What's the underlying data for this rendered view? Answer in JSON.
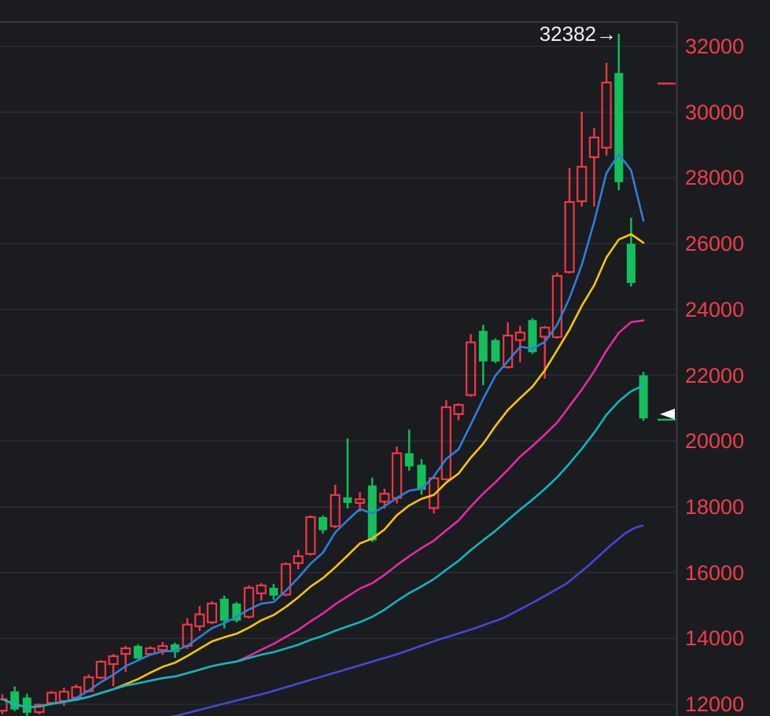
{
  "chart_data": {
    "type": "candlestick",
    "title": "",
    "xlabel": "",
    "ylabel": "",
    "legend_position": "none",
    "grid": true,
    "annotation": {
      "text": "32382→",
      "anchor_value": 32382,
      "color": "#eef0f2"
    },
    "y_axis": {
      "side": "right",
      "min": 12000,
      "max": 32000,
      "tick_step": 2000,
      "ticks": [
        32000,
        30000,
        28000,
        26000,
        24000,
        22000,
        20000,
        18000,
        16000,
        14000,
        12000
      ],
      "tick_labels": [
        "32000",
        "30000",
        "28000",
        "26000",
        "24000",
        "22000",
        "20000",
        "18000",
        "16000",
        "14000",
        "12000"
      ],
      "label_color": "#ef3e4a"
    },
    "candles": {
      "convention": "red-hollow-up, green-solid-down",
      "ohlc": [
        [
          11800,
          12300,
          11700,
          12150
        ],
        [
          12390,
          12540,
          11790,
          11840
        ],
        [
          12200,
          12320,
          11640,
          11740
        ],
        [
          11760,
          12020,
          11700,
          11980
        ],
        [
          12040,
          12400,
          11990,
          12350
        ],
        [
          12100,
          12500,
          11950,
          12380
        ],
        [
          12200,
          12600,
          12150,
          12520
        ],
        [
          12400,
          12900,
          12360,
          12820
        ],
        [
          12810,
          13340,
          12760,
          13290
        ],
        [
          13220,
          13530,
          12550,
          13460
        ],
        [
          13530,
          13770,
          12980,
          13700
        ],
        [
          13770,
          13820,
          13340,
          13390
        ],
        [
          13530,
          13760,
          13470,
          13700
        ],
        [
          13650,
          13890,
          13500,
          13770
        ],
        [
          13820,
          13870,
          13410,
          13580
        ],
        [
          13770,
          14620,
          13680,
          14420
        ],
        [
          14370,
          14980,
          14230,
          14730
        ],
        [
          14490,
          15130,
          14440,
          15060
        ],
        [
          15210,
          15300,
          14300,
          14540
        ],
        [
          15060,
          15110,
          14490,
          14540
        ],
        [
          14660,
          15610,
          14610,
          15540
        ],
        [
          15370,
          15680,
          15150,
          15610
        ],
        [
          15540,
          15660,
          15180,
          15300
        ],
        [
          15330,
          16310,
          15280,
          16260
        ],
        [
          16290,
          16690,
          16100,
          16500
        ],
        [
          16570,
          17740,
          16520,
          17690
        ],
        [
          17690,
          17740,
          17190,
          17290
        ],
        [
          17410,
          18670,
          17360,
          18360
        ],
        [
          18290,
          20080,
          17950,
          18120
        ],
        [
          18120,
          18450,
          17850,
          18230
        ],
        [
          18650,
          18890,
          16930,
          16980
        ],
        [
          18160,
          18550,
          17950,
          18400
        ],
        [
          18270,
          19830,
          18100,
          19630
        ],
        [
          19630,
          20350,
          19100,
          19230
        ],
        [
          19280,
          19450,
          18370,
          18520
        ],
        [
          17960,
          18920,
          17800,
          18870
        ],
        [
          18840,
          21240,
          18800,
          21030
        ],
        [
          20820,
          21150,
          20630,
          21100
        ],
        [
          21400,
          23250,
          21350,
          23000
        ],
        [
          23350,
          23540,
          21700,
          22420
        ],
        [
          23070,
          23120,
          22370,
          22420
        ],
        [
          22250,
          23610,
          22200,
          23210
        ],
        [
          23070,
          23500,
          22400,
          23300
        ],
        [
          23680,
          23730,
          22650,
          22700
        ],
        [
          23170,
          23500,
          21900,
          23450
        ],
        [
          23160,
          25120,
          23110,
          25020
        ],
        [
          25140,
          28300,
          25090,
          27270
        ],
        [
          27290,
          30010,
          27130,
          28340
        ],
        [
          28630,
          29520,
          27130,
          29230
        ],
        [
          28920,
          31500,
          28680,
          30900
        ],
        [
          31190,
          32382,
          27630,
          27870
        ],
        [
          26000,
          26790,
          24700,
          24810
        ],
        [
          22000,
          22100,
          20620,
          20690
        ]
      ]
    },
    "moving_averages": [
      {
        "name": "MA5",
        "color": "#2d7fd9",
        "window": 5
      },
      {
        "name": "MA10",
        "color": "#f8c50d",
        "window": 10
      },
      {
        "name": "MA20",
        "color": "#e32ba0",
        "window": 20
      },
      {
        "name": "MA30",
        "color": "#10b7ba",
        "window": 30
      },
      {
        "name": "MA60",
        "color": "#4547d8",
        "points": [
          [
            160,
            11400
          ],
          [
            225,
            11650
          ],
          [
            285,
            12020
          ],
          [
            340,
            12350
          ],
          [
            395,
            12740
          ],
          [
            450,
            13130
          ],
          [
            505,
            13520
          ],
          [
            555,
            13940
          ],
          [
            600,
            14280
          ],
          [
            640,
            14620
          ],
          [
            680,
            15120
          ],
          [
            720,
            15660
          ],
          [
            750,
            16250
          ],
          [
            775,
            16800
          ],
          [
            795,
            17200
          ],
          [
            808,
            17370
          ],
          [
            817,
            17430
          ]
        ]
      }
    ],
    "markers": [
      {
        "name": "upper-price-marker",
        "value": 30870,
        "color": "#f23645",
        "triangle": false
      },
      {
        "name": "last-price-marker",
        "value": 20650,
        "color": "#13c05c",
        "triangle": true,
        "triangle_color": "#ffffff"
      }
    ],
    "colors": {
      "up": "#f23645",
      "down": "#13c05c",
      "background": "#1b1c20",
      "grid": "#2b2c32",
      "axis_border": "#3a3c42"
    }
  }
}
